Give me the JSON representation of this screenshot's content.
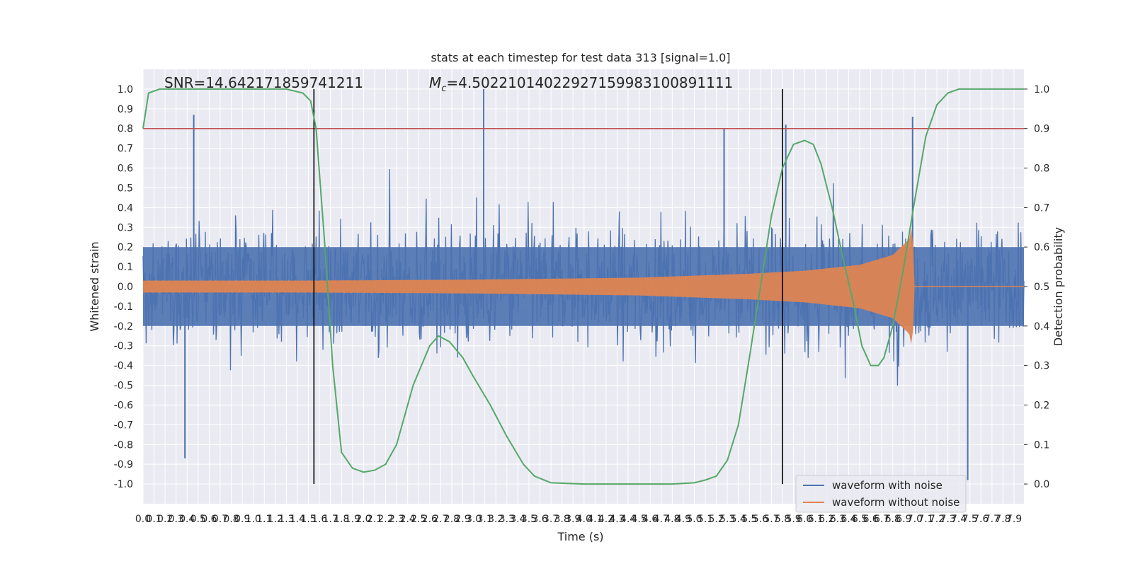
{
  "chart_data": {
    "type": "line",
    "title": "stats at each timestep for test data 313 [signal=1.0]",
    "xlabel": "Time (s)",
    "ylabel": "Whitened strain",
    "y2label": "Detection probability",
    "xlim": [
      0.0,
      7.99
    ],
    "ylim": [
      -1.1,
      1.1
    ],
    "y2lim": [
      -0.05,
      1.05
    ],
    "x_tick_step": 0.1,
    "y_tick_step": 0.1,
    "y2_tick_step": 0.1,
    "grid": true,
    "legend_position": "lower-right",
    "annotations": {
      "snr": "SNR=14.642171859741211",
      "mc": "=4.50221014022927159983100891111",
      "mc_symbol": "M",
      "mc_subscript": "c"
    },
    "threshold": {
      "value": 0.8,
      "color": "#c44e52"
    },
    "vertical_lines": [
      1.55,
      5.8
    ],
    "series": [
      {
        "name": "waveform with noise",
        "color": "#4c72b0",
        "description_kind": "noise",
        "amplitude_typical": 0.45,
        "spikes": [
          [
            0.46,
            0.87
          ],
          [
            3.09,
            1.0
          ],
          [
            6.98,
            0.86
          ],
          [
            7.48,
            -0.98
          ],
          [
            0.38,
            -0.87
          ],
          [
            5.83,
            0.82
          ],
          [
            5.27,
            0.8
          ]
        ]
      },
      {
        "name": "waveform without noise",
        "color": "#dd8452",
        "description_kind": "chirp",
        "envelope": [
          [
            0.0,
            0.03
          ],
          [
            1.5,
            0.03
          ],
          [
            3.0,
            0.035
          ],
          [
            4.5,
            0.045
          ],
          [
            5.5,
            0.065
          ],
          [
            6.0,
            0.08
          ],
          [
            6.5,
            0.11
          ],
          [
            6.8,
            0.16
          ],
          [
            6.95,
            0.24
          ],
          [
            6.98,
            0.33
          ],
          [
            6.99,
            0.0
          ],
          [
            7.99,
            0.0
          ]
        ]
      },
      {
        "name": "detection probability",
        "color": "#55a868",
        "axis": "right",
        "points": [
          [
            0.0,
            0.9
          ],
          [
            0.05,
            0.99
          ],
          [
            0.15,
            1.0
          ],
          [
            1.3,
            1.0
          ],
          [
            1.45,
            0.99
          ],
          [
            1.52,
            0.97
          ],
          [
            1.57,
            0.9
          ],
          [
            1.65,
            0.6
          ],
          [
            1.72,
            0.3
          ],
          [
            1.8,
            0.08
          ],
          [
            1.9,
            0.04
          ],
          [
            2.0,
            0.03
          ],
          [
            2.1,
            0.035
          ],
          [
            2.2,
            0.05
          ],
          [
            2.3,
            0.1
          ],
          [
            2.45,
            0.25
          ],
          [
            2.6,
            0.35
          ],
          [
            2.68,
            0.375
          ],
          [
            2.78,
            0.36
          ],
          [
            2.9,
            0.32
          ],
          [
            3.0,
            0.27
          ],
          [
            3.15,
            0.2
          ],
          [
            3.3,
            0.12
          ],
          [
            3.45,
            0.05
          ],
          [
            3.55,
            0.02
          ],
          [
            3.7,
            0.003
          ],
          [
            4.0,
            0.0
          ],
          [
            4.8,
            0.0
          ],
          [
            5.0,
            0.003
          ],
          [
            5.1,
            0.01
          ],
          [
            5.2,
            0.02
          ],
          [
            5.3,
            0.06
          ],
          [
            5.4,
            0.15
          ],
          [
            5.5,
            0.32
          ],
          [
            5.6,
            0.5
          ],
          [
            5.7,
            0.68
          ],
          [
            5.8,
            0.8
          ],
          [
            5.9,
            0.86
          ],
          [
            6.0,
            0.87
          ],
          [
            6.08,
            0.86
          ],
          [
            6.15,
            0.81
          ],
          [
            6.25,
            0.7
          ],
          [
            6.35,
            0.57
          ],
          [
            6.45,
            0.45
          ],
          [
            6.52,
            0.35
          ],
          [
            6.6,
            0.3
          ],
          [
            6.67,
            0.3
          ],
          [
            6.72,
            0.32
          ],
          [
            6.8,
            0.4
          ],
          [
            6.9,
            0.55
          ],
          [
            7.0,
            0.72
          ],
          [
            7.1,
            0.88
          ],
          [
            7.2,
            0.96
          ],
          [
            7.3,
            0.99
          ],
          [
            7.4,
            1.0
          ],
          [
            7.99,
            1.0
          ]
        ]
      }
    ]
  }
}
